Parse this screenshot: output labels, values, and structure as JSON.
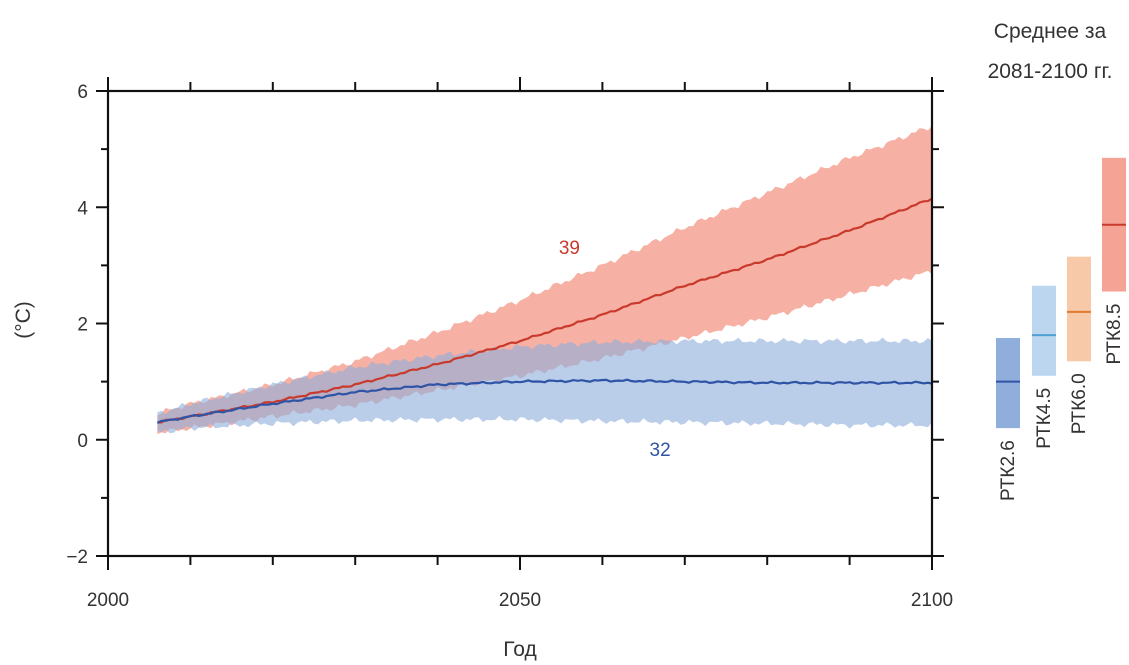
{
  "chart_data": {
    "type": "area",
    "title": "",
    "xlabel": "Год",
    "ylabel": "(°C)",
    "xlim": [
      2000,
      2100
    ],
    "ylim": [
      -2,
      6
    ],
    "x_ticks": [
      2000,
      2050,
      2100
    ],
    "y_ticks": [
      -2,
      0,
      2,
      4,
      6
    ],
    "grid": false,
    "series": [
      {
        "scenario": "RCP8.5",
        "color": "#c93a2c",
        "band_color": "#f4a394",
        "annotation": "39",
        "x": [
          2006,
          2010,
          2020,
          2030,
          2040,
          2050,
          2060,
          2070,
          2080,
          2090,
          2100
        ],
        "mean": [
          0.3,
          0.4,
          0.65,
          0.95,
          1.3,
          1.7,
          2.15,
          2.65,
          3.1,
          3.6,
          4.15
        ],
        "lower": [
          0.12,
          0.2,
          0.4,
          0.6,
          0.85,
          1.1,
          1.4,
          1.75,
          2.1,
          2.5,
          2.9
        ],
        "upper": [
          0.45,
          0.62,
          0.95,
          1.35,
          1.85,
          2.4,
          3.0,
          3.65,
          4.25,
          4.85,
          5.4
        ]
      },
      {
        "scenario": "RCP2.6",
        "color": "#2f54a6",
        "band_color": "#8faedc",
        "annotation": "32",
        "x": [
          2006,
          2010,
          2020,
          2030,
          2040,
          2050,
          2060,
          2070,
          2080,
          2090,
          2100
        ],
        "mean": [
          0.3,
          0.4,
          0.62,
          0.82,
          0.95,
          1.0,
          1.02,
          1.0,
          0.98,
          0.98,
          0.98
        ],
        "lower": [
          0.12,
          0.2,
          0.28,
          0.33,
          0.35,
          0.35,
          0.32,
          0.3,
          0.28,
          0.25,
          0.25
        ],
        "upper": [
          0.45,
          0.62,
          0.95,
          1.25,
          1.45,
          1.6,
          1.68,
          1.7,
          1.7,
          1.7,
          1.7
        ]
      }
    ],
    "side_panel": {
      "title_line1": "Среднее за",
      "title_line2": "2081-2100 гг.",
      "bars": [
        {
          "label": "РТК2.6",
          "low": 0.2,
          "mean": 1.0,
          "high": 1.75,
          "fill": "#8faedc",
          "line": "#2f54a6"
        },
        {
          "label": "РТК4.5",
          "low": 1.1,
          "mean": 1.8,
          "high": 2.65,
          "fill": "#bcd6ef",
          "line": "#4da0d4"
        },
        {
          "label": "РТК6.0",
          "low": 1.35,
          "mean": 2.2,
          "high": 3.15,
          "fill": "#f8c9a8",
          "line": "#e07a2c"
        },
        {
          "label": "РТК8.5",
          "low": 2.55,
          "mean": 3.7,
          "high": 4.85,
          "fill": "#f4a394",
          "line": "#c93a2c"
        }
      ]
    }
  }
}
